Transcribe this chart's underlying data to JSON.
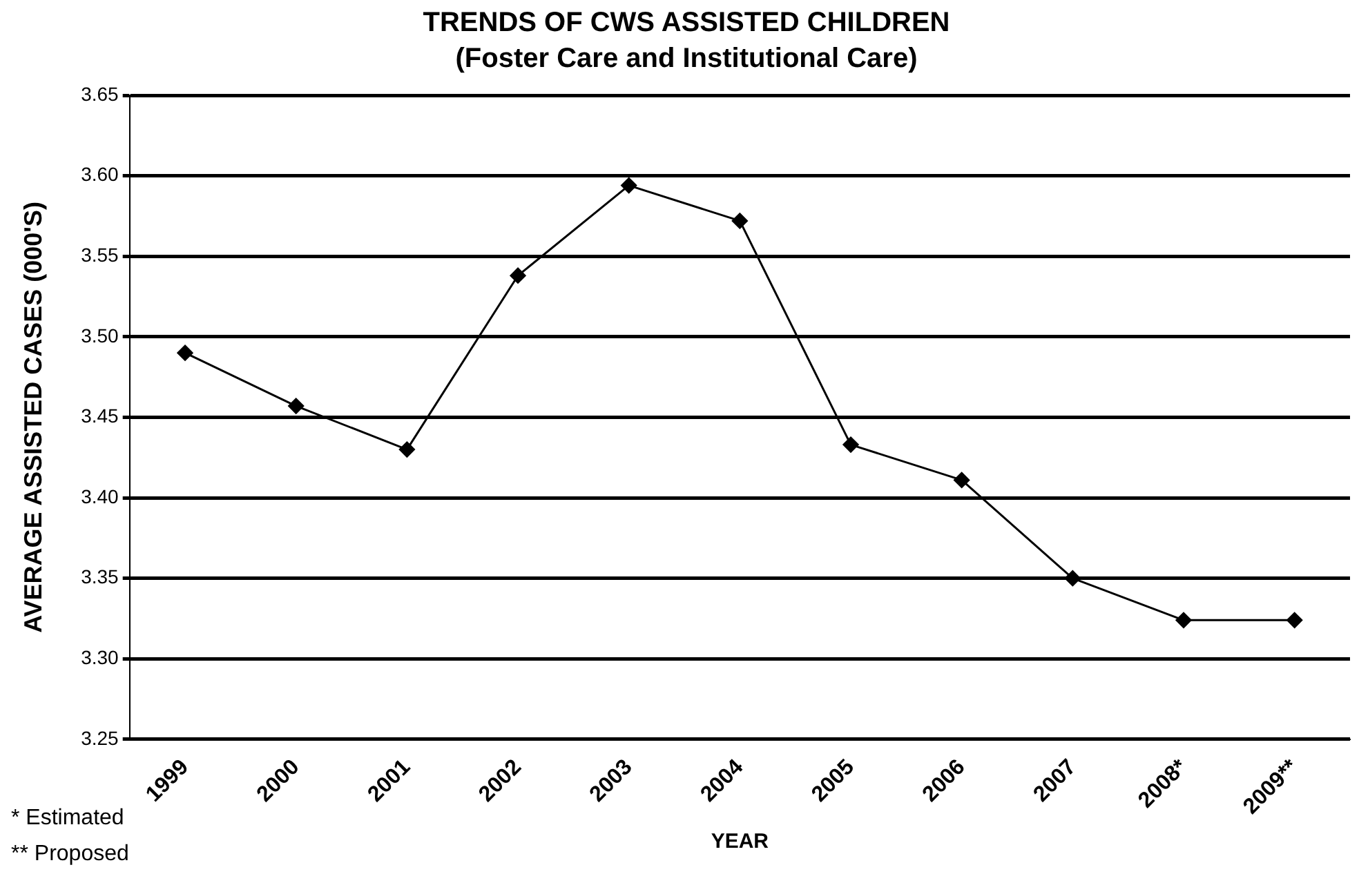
{
  "chart_data": {
    "type": "line",
    "title": "TRENDS OF CWS ASSISTED CHILDREN",
    "subtitle": "(Foster Care and Institutional Care)",
    "xlabel": "YEAR",
    "ylabel": "AVERAGE ASSISTED CASES (000'S)",
    "categories": [
      "1999",
      "2000",
      "2001",
      "2002",
      "2003",
      "2004",
      "2005",
      "2006",
      "2007",
      "2008*",
      "2009**"
    ],
    "series": [
      {
        "color": "#000000",
        "values": [
          3.49,
          3.457,
          3.43,
          3.538,
          3.594,
          3.572,
          3.433,
          3.411,
          3.35,
          3.324,
          3.324
        ]
      }
    ],
    "ylim": [
      3.25,
      3.65
    ],
    "yticks": [
      {
        "value": 3.25,
        "label": "3.25"
      },
      {
        "value": 3.3,
        "label": "3.30"
      },
      {
        "value": 3.35,
        "label": "3.35"
      },
      {
        "value": 3.4,
        "label": "3.40"
      },
      {
        "value": 3.45,
        "label": "3.45"
      },
      {
        "value": 3.5,
        "label": "3.50"
      },
      {
        "value": 3.55,
        "label": "3.55"
      },
      {
        "value": 3.6,
        "label": "3.60"
      },
      {
        "value": 3.65,
        "label": "3.65"
      }
    ],
    "grid": "y",
    "legend": false,
    "marker": "diamond",
    "line_style": "solid",
    "annotations": [
      "* Estimated",
      "** Proposed"
    ]
  }
}
